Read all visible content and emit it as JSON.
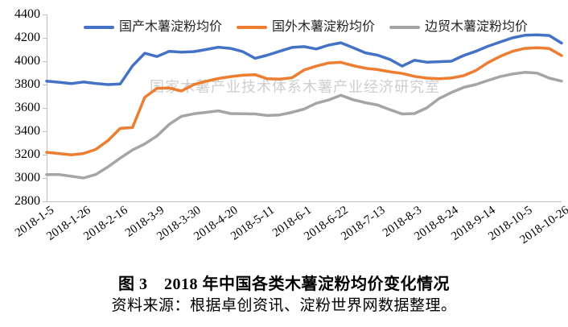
{
  "figure": {
    "caption": "图 3　2018 年中国各类木薯淀粉均价变化情况",
    "source": "资料来源：根据卓创资讯、淀粉世界网数据整理。"
  },
  "chart_data": {
    "type": "line",
    "watermark": "国家木薯产业技术体系木薯产业经济研究室",
    "legend_position": "top",
    "grid": false,
    "axis_color": "#BFBFBF",
    "ylim": [
      2800,
      4400
    ],
    "y_ticks": [
      2800,
      3000,
      3200,
      3400,
      3600,
      3800,
      4000,
      4200,
      4400
    ],
    "x_tick_labels": [
      "2018-1-5",
      "2018-1-26",
      "2018-2-16",
      "2018-3-9",
      "2018-3-30",
      "2018-4-20",
      "2018-5-11",
      "2018-6-1",
      "2018-6-22",
      "2018-7-13",
      "2018-8-3",
      "2018-8-24",
      "2018-9-14",
      "2018-10-5",
      "2018-10-26"
    ],
    "points_per_tick": 3,
    "n_points": 43,
    "series": [
      {
        "name": "国产木薯淀粉均价",
        "color": "#4472C4",
        "values": [
          3830,
          3820,
          3808,
          3822,
          3810,
          3800,
          3805,
          3960,
          4068,
          4040,
          4085,
          4078,
          4082,
          4100,
          4120,
          4110,
          4082,
          4025,
          4052,
          4085,
          4118,
          4125,
          4105,
          4138,
          4158,
          4115,
          4072,
          4052,
          4015,
          3958,
          4008,
          3992,
          3996,
          4000,
          4048,
          4085,
          4128,
          4165,
          4200,
          4222,
          4226,
          4220,
          4155
        ]
      },
      {
        "name": "国外木薯淀粉均价",
        "color": "#ED7D31",
        "values": [
          3220,
          3210,
          3198,
          3210,
          3245,
          3320,
          3425,
          3432,
          3690,
          3768,
          3770,
          3745,
          3800,
          3828,
          3852,
          3868,
          3880,
          3885,
          3850,
          3846,
          3858,
          3925,
          3958,
          3985,
          3990,
          3962,
          3940,
          3928,
          3910,
          3895,
          3870,
          3855,
          3850,
          3856,
          3876,
          3920,
          3988,
          4042,
          4085,
          4110,
          4115,
          4108,
          4048
        ]
      },
      {
        "name": "边贸木薯淀粉均价",
        "color": "#A5A5A5",
        "values": [
          3030,
          3030,
          3015,
          3000,
          3030,
          3095,
          3170,
          3240,
          3292,
          3360,
          3460,
          3528,
          3550,
          3562,
          3575,
          3552,
          3550,
          3548,
          3535,
          3540,
          3562,
          3590,
          3640,
          3668,
          3708,
          3670,
          3645,
          3625,
          3585,
          3548,
          3552,
          3600,
          3680,
          3732,
          3775,
          3800,
          3835,
          3868,
          3890,
          3905,
          3898,
          3855,
          3830
        ]
      }
    ]
  }
}
